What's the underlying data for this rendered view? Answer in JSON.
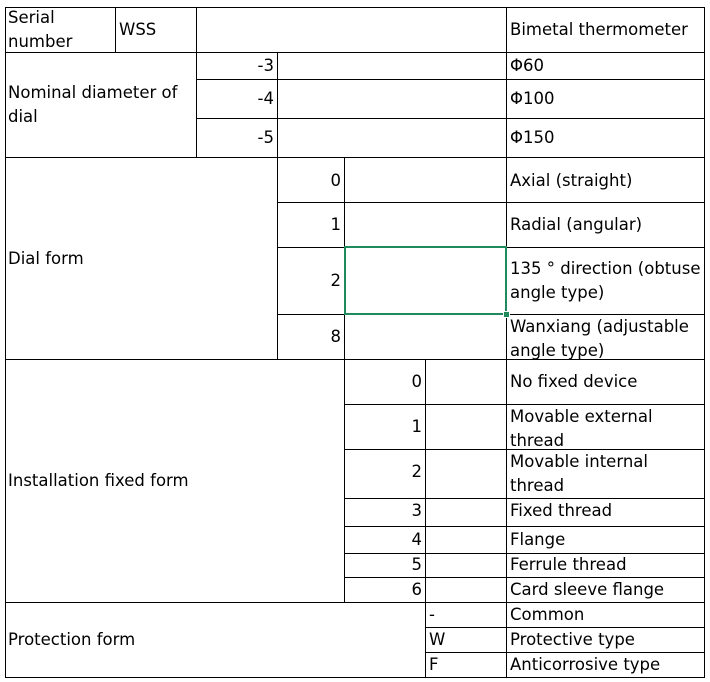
{
  "sheet": {
    "header": {
      "serial_label": "Serial number",
      "code": "WSS",
      "description": "Bimetal thermometer"
    },
    "groups": [
      {
        "label": "Nominal diameter of dial",
        "rows": [
          {
            "code": "-3",
            "desc": "Φ60"
          },
          {
            "code": "-4",
            "desc": "Φ100"
          },
          {
            "code": "-5",
            "desc": "Φ150"
          }
        ]
      },
      {
        "label": "Dial form",
        "rows": [
          {
            "code": "0",
            "desc": "Axial (straight)"
          },
          {
            "code": "1",
            "desc": "Radial (angular)"
          },
          {
            "code": "2",
            "desc": "135 ° direction (obtuse angle type)"
          },
          {
            "code": "8",
            "desc": "Wanxiang (adjustable angle type)"
          }
        ]
      },
      {
        "label": "Installation fixed form",
        "rows": [
          {
            "code": "0",
            "desc": "No fixed device"
          },
          {
            "code": "1",
            "desc": "Movable external thread"
          },
          {
            "code": "2",
            "desc": "Movable internal thread"
          },
          {
            "code": "3",
            "desc": "Fixed thread"
          },
          {
            "code": "4",
            "desc": "Flange"
          },
          {
            "code": "5",
            "desc": "Ferrule thread"
          },
          {
            "code": "6",
            "desc": "Card sleeve flange"
          }
        ]
      },
      {
        "label": "Protection form",
        "rows": [
          {
            "code": "-",
            "desc": "Common"
          },
          {
            "code": "W",
            "desc": "Protective type"
          },
          {
            "code": "F",
            "desc": "Anticorrosive type"
          }
        ]
      }
    ],
    "grid_color": "#000000",
    "selection_color": "#1f8a5b"
  }
}
